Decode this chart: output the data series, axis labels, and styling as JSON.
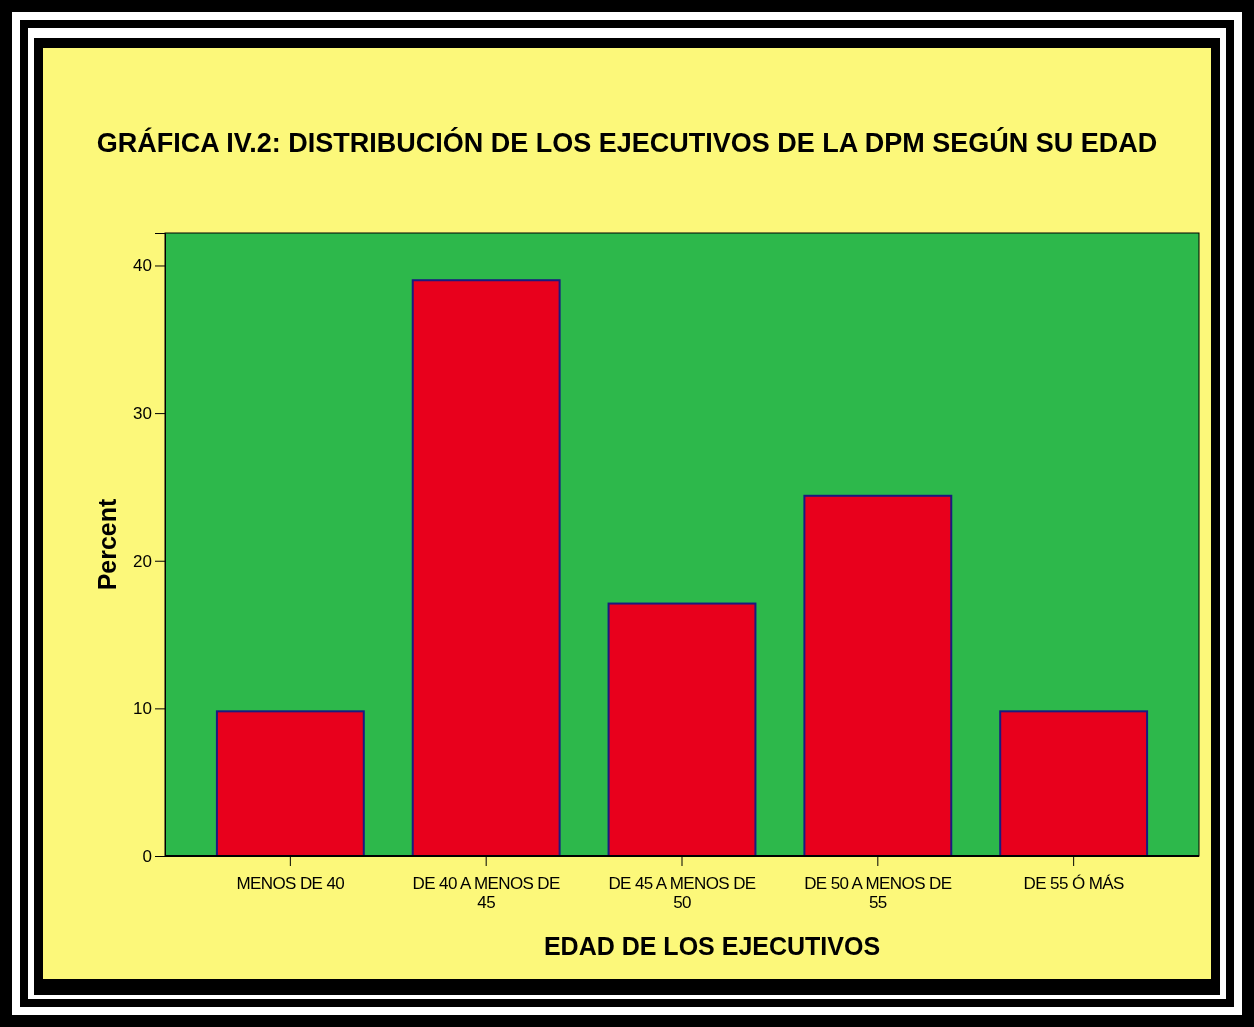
{
  "chart_data": {
    "type": "bar",
    "title": "GRÁFICA IV.2: DISTRIBUCIÓN DE LOS EJECUTIVOS DE LA DPM SEGÚN SU EDAD",
    "xlabel": "EDAD DE LOS EJECUTIVOS",
    "ylabel": "Percent",
    "categories": [
      "MENOS DE 40",
      "DE 40 A MENOS DE 45",
      "DE 45 A MENOS DE 50",
      "DE 50 A MENOS DE 55",
      "DE 55 Ó MÁS"
    ],
    "values": [
      9.8,
      39.0,
      17.1,
      24.4,
      9.8
    ],
    "color": "#e8001c",
    "ylim": [
      0,
      42.2
    ],
    "yticks": [
      0,
      10,
      20,
      30,
      40
    ],
    "grid": false
  }
}
